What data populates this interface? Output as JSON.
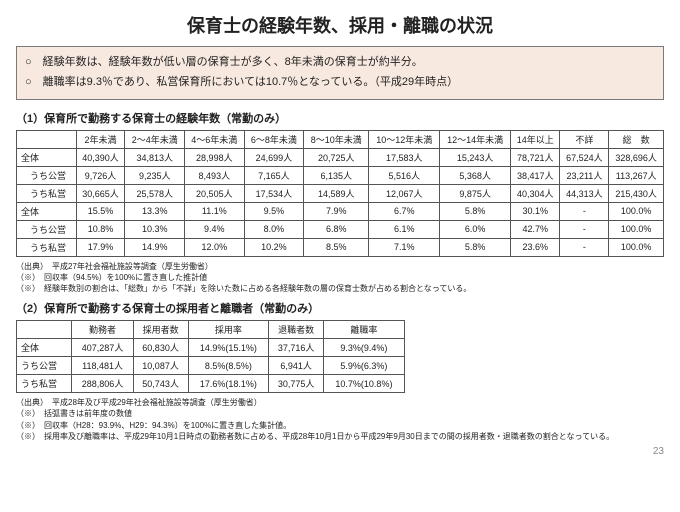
{
  "title": "保育士の経験年数、採用・離職の状況",
  "notes": {
    "line1": "○　経験年数は、経験年数が低い層の保育士が多く、8年未満の保育士が約半分。",
    "line2": "○　離職率は9.3％であり、私営保育所においては10.7％となっている。（平成29年時点）"
  },
  "section1_title": "（1）保育所で勤務する保育士の経験年数（常勤のみ）",
  "table1": {
    "headers": [
      "",
      "2年未満",
      "2～4年未満",
      "4～6年未満",
      "6～8年未満",
      "8～10年未満",
      "10～12年未満",
      "12～14年未満",
      "14年以上",
      "不詳",
      "総　数"
    ],
    "rows": [
      [
        "全体",
        "40,390人",
        "34,813人",
        "28,998人",
        "24,699人",
        "20,725人",
        "17,583人",
        "15,243人",
        "78,721人",
        "67,524人",
        "328,696人"
      ],
      [
        "　うち公営",
        "9,726人",
        "9,235人",
        "8,493人",
        "7,165人",
        "6,135人",
        "5,516人",
        "5,368人",
        "38,417人",
        "23,211人",
        "113,267人"
      ],
      [
        "　うち私営",
        "30,665人",
        "25,578人",
        "20,505人",
        "17,534人",
        "14,589人",
        "12,067人",
        "9,875人",
        "40,304人",
        "44,313人",
        "215,430人"
      ],
      [
        "全体",
        "15.5%",
        "13.3%",
        "11.1%",
        "9.5%",
        "7.9%",
        "6.7%",
        "5.8%",
        "30.1%",
        "-",
        "100.0%"
      ],
      [
        "　うち公営",
        "10.8%",
        "10.3%",
        "9.4%",
        "8.0%",
        "6.8%",
        "6.1%",
        "6.0%",
        "42.7%",
        "-",
        "100.0%"
      ],
      [
        "　うち私営",
        "17.9%",
        "14.9%",
        "12.0%",
        "10.2%",
        "8.5%",
        "7.1%",
        "5.8%",
        "23.6%",
        "-",
        "100.0%"
      ]
    ]
  },
  "footnotes1": {
    "f1": "（出典）　平成27年社会福祉施設等調査（厚生労働省）",
    "f2": "（※）　回収率（94.5%）を100%に置き直した推計値",
    "f3": "（※）　経験年数別の割合は、「総数」から「不詳」を除いた数に占める各経験年数の層の保育士数が占める割合となっている。"
  },
  "section2_title": "（2）保育所で勤務する保育士の採用者と離職者（常勤のみ）",
  "table2": {
    "headers": [
      "",
      "勤務者",
      "採用者数",
      "採用率",
      "退職者数",
      "離職率"
    ],
    "rows": [
      [
        "全体",
        "407,287人",
        "60,830人",
        "14.9%(15.1%)",
        "37,716人",
        "9.3%(9.4%)"
      ],
      [
        "うち公営",
        "118,481人",
        "10,087人",
        "8.5%(8.5%)",
        "6,941人",
        "5.9%(6.3%)"
      ],
      [
        "うち私営",
        "288,806人",
        "50,743人",
        "17.6%(18.1%)",
        "30,775人",
        "10.7%(10.8%)"
      ]
    ]
  },
  "footnotes2": {
    "f1": "（出典）　平成28年及び平成29年社会福祉施設等調査（厚生労働省）",
    "f2": "（※）　括弧書きは前年度の数値",
    "f3": "（※）　回収率（H28：93.9%、H29：94.3%）を100%に置き直した集計値。",
    "f4": "（※）　採用率及び離職率は、平成29年10月1日時点の勤務者数に占める、平成28年10月1日から平成29年9月30日までの間の採用者数・退職者数の割合となっている。"
  },
  "page_number": "23"
}
